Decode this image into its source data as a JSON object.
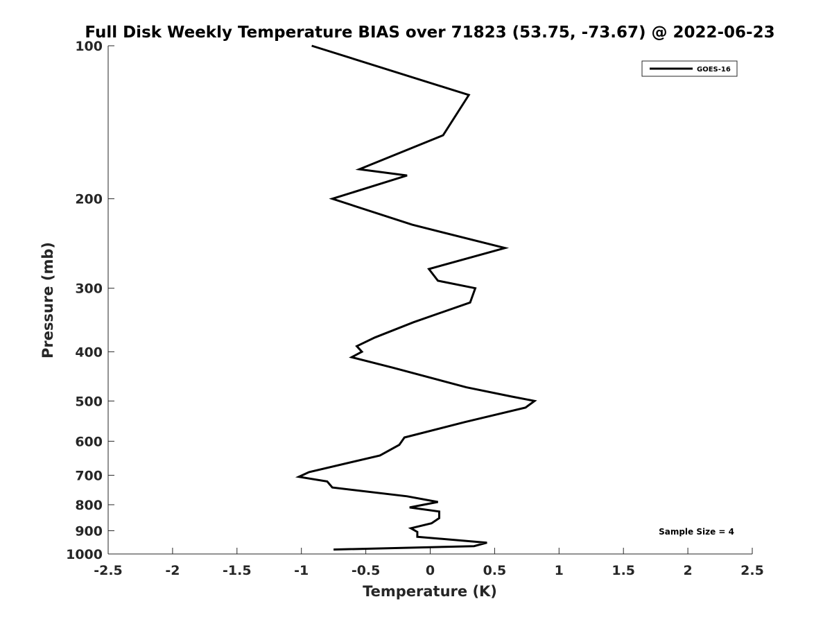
{
  "chart_data": {
    "type": "line",
    "title": "Full Disk Weekly Temperature BIAS over 71823 (53.75, -73.67) @ 2022-06-23",
    "xlabel": "Temperature (K)",
    "ylabel": "Pressure (mb)",
    "xlim": [
      -2.5,
      2.5
    ],
    "ylim": [
      100,
      1000
    ],
    "y_scale": "log",
    "y_reversed": true,
    "grid": false,
    "legend_position": "top-right",
    "x_ticks": [
      "-2.5",
      "-2",
      "-1.5",
      "-1",
      "-0.5",
      "0",
      "0.5",
      "1",
      "1.5",
      "2",
      "2.5"
    ],
    "x_tick_values": [
      -2.5,
      -2,
      -1.5,
      -1,
      -0.5,
      0,
      0.5,
      1,
      1.5,
      2,
      2.5
    ],
    "y_ticks": [
      "100",
      "200",
      "300",
      "400",
      "500",
      "600",
      "700",
      "800",
      "900",
      "1000"
    ],
    "y_tick_values": [
      100,
      200,
      300,
      400,
      500,
      600,
      700,
      800,
      900,
      1000
    ],
    "annotation": "Sample Size = 4",
    "series": [
      {
        "name": "GOES-16",
        "color": "#000000",
        "points": [
          {
            "x": -0.92,
            "p": 100
          },
          {
            "x": 0.3,
            "p": 125
          },
          {
            "x": 0.1,
            "p": 150
          },
          {
            "x": -0.55,
            "p": 175
          },
          {
            "x": -0.18,
            "p": 180
          },
          {
            "x": -0.76,
            "p": 200
          },
          {
            "x": -0.14,
            "p": 225
          },
          {
            "x": 0.58,
            "p": 250
          },
          {
            "x": -0.01,
            "p": 275
          },
          {
            "x": 0.06,
            "p": 290
          },
          {
            "x": 0.35,
            "p": 300
          },
          {
            "x": 0.31,
            "p": 320
          },
          {
            "x": -0.13,
            "p": 350
          },
          {
            "x": -0.43,
            "p": 375
          },
          {
            "x": -0.57,
            "p": 390
          },
          {
            "x": -0.53,
            "p": 400
          },
          {
            "x": -0.61,
            "p": 410
          },
          {
            "x": -0.29,
            "p": 430
          },
          {
            "x": 0.28,
            "p": 470
          },
          {
            "x": 0.63,
            "p": 490
          },
          {
            "x": 0.81,
            "p": 500
          },
          {
            "x": 0.74,
            "p": 515
          },
          {
            "x": 0.27,
            "p": 550
          },
          {
            "x": -0.2,
            "p": 590
          },
          {
            "x": -0.24,
            "p": 610
          },
          {
            "x": -0.39,
            "p": 640
          },
          {
            "x": -0.94,
            "p": 690
          },
          {
            "x": -1.02,
            "p": 705
          },
          {
            "x": -0.8,
            "p": 720
          },
          {
            "x": -0.76,
            "p": 740
          },
          {
            "x": -0.18,
            "p": 770
          },
          {
            "x": 0.06,
            "p": 790
          },
          {
            "x": -0.16,
            "p": 810
          },
          {
            "x": 0.07,
            "p": 825
          },
          {
            "x": 0.07,
            "p": 850
          },
          {
            "x": 0.01,
            "p": 870
          },
          {
            "x": -0.15,
            "p": 890
          },
          {
            "x": -0.1,
            "p": 905
          },
          {
            "x": -0.1,
            "p": 925
          },
          {
            "x": 0.44,
            "p": 950
          },
          {
            "x": 0.34,
            "p": 965
          },
          {
            "x": -0.75,
            "p": 980
          }
        ]
      }
    ]
  }
}
